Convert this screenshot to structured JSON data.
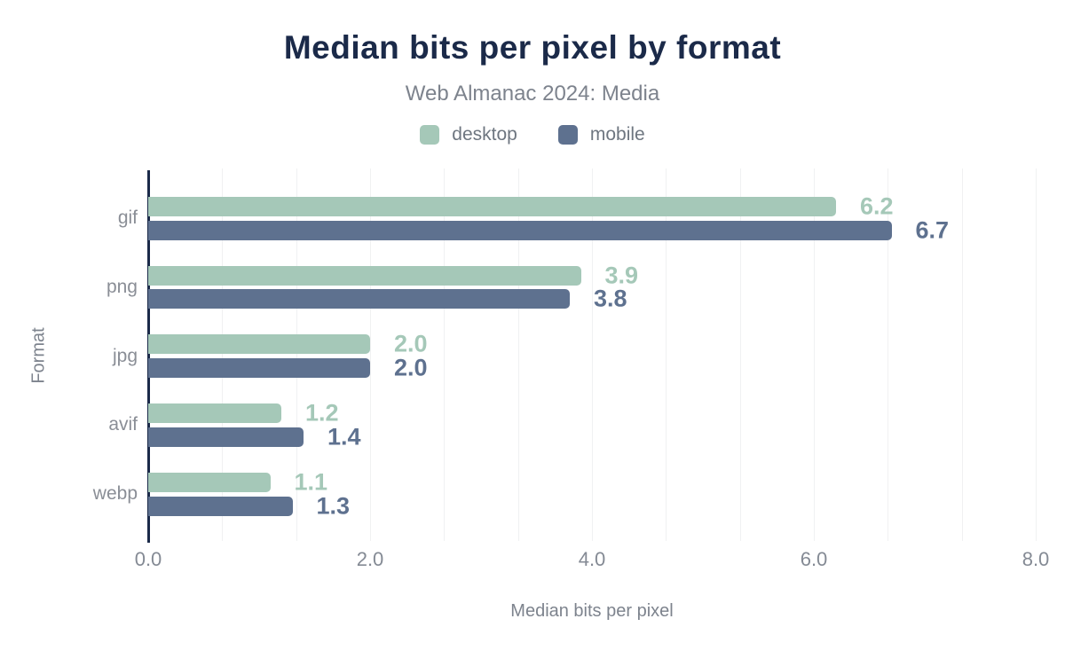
{
  "header": {
    "title": "Median bits per pixel by format",
    "subtitle": "Web Almanac 2024: Media"
  },
  "chart_data": {
    "type": "bar",
    "orientation": "horizontal",
    "title": "Median bits per pixel by format",
    "subtitle": "Web Almanac 2024: Media",
    "categories": [
      "gif",
      "png",
      "jpg",
      "avif",
      "webp"
    ],
    "series": [
      {
        "name": "desktop",
        "color": "#a5c8b8",
        "values": [
          6.2,
          3.9,
          2.0,
          1.2,
          1.1
        ]
      },
      {
        "name": "mobile",
        "color": "#5e718f",
        "values": [
          6.7,
          3.8,
          2.0,
          1.4,
          1.3
        ]
      }
    ],
    "xlabel": "Median bits per pixel",
    "ylabel": "Format",
    "xlim": [
      0,
      8
    ],
    "x_tick_labels": [
      "0.0",
      "2.0",
      "4.0",
      "6.0",
      "8.0"
    ],
    "x_tick_values": [
      0,
      2,
      4,
      6,
      8
    ],
    "grid": true,
    "minor_gridline_step": 0.6666667,
    "legend_position": "top",
    "value_labels_shown": true,
    "colors": {
      "title": "#1b2a49",
      "axis_line": "#1b2a49",
      "subtitle_text": "#7d838d",
      "tick_text": "#848a94",
      "category_text": "#8a8e96",
      "legend_text": "#6e7680",
      "gridline": "#f0f1f2",
      "background": "#ffffff"
    }
  }
}
